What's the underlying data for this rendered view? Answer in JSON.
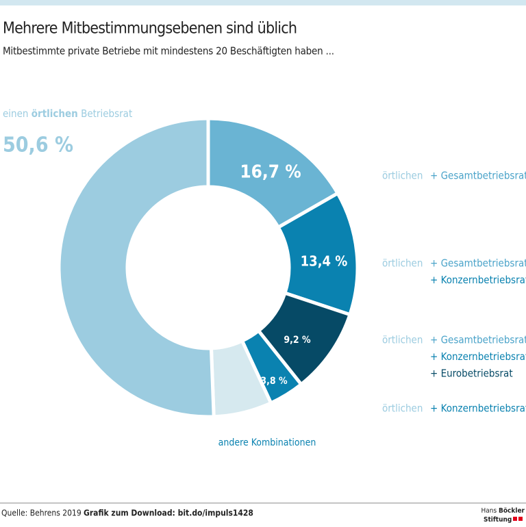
{
  "header": {
    "title": "Mehrere Mitbestimmungsebenen sind üblich",
    "subtitle": "Mitbestimmte private Betriebe mit mindestens 20 Beschäftigten haben ..."
  },
  "chart_data": {
    "type": "donut",
    "categories": [
      [
        [
          "örtlichen",
          "+ Gesamtbetriebsrat"
        ]
      ],
      [
        [
          "örtlichen",
          "+ Gesamtbetriebsrat"
        ],
        [
          "+ Konzernbetriebsrat"
        ]
      ],
      [
        [
          "örtlichen",
          "+ Gesamtbetriebsrat"
        ],
        [
          "+ Konzernbetriebsrat"
        ],
        [
          "+ Eurobetriebsrat"
        ]
      ],
      [
        [
          "örtlichen",
          "+ Konzernbetriebsrat"
        ]
      ],
      [
        [
          "andere Kombinationen"
        ]
      ],
      [
        [
          "einen",
          "örtlichen",
          "Betriebsrat"
        ]
      ]
    ],
    "values": [
      16.7,
      13.4,
      9.2,
      3.8,
      6.3,
      50.6
    ],
    "value_labels": [
      "16,7 %",
      "13,4 %",
      "9,2 %",
      "3,8 %",
      null,
      "50,6 %"
    ],
    "colors": [
      "#6ab4d3",
      "#0a82b0",
      "#064a66",
      "#0a82b0",
      "#d6e9ef",
      "#9ccce0"
    ]
  },
  "footer": {
    "source": "Quelle: Behrens 2019",
    "download": "Grafik zum Download: bit.do/impuls1428",
    "logo": [
      "Hans",
      "Böckler",
      "Stiftung"
    ]
  }
}
